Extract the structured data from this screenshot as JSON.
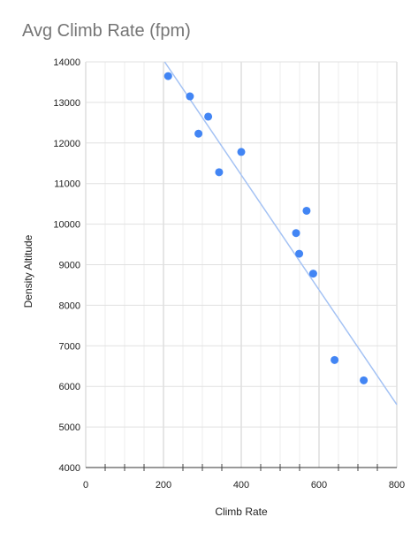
{
  "chart_data": {
    "type": "scatter",
    "title": "Avg Climb Rate (fpm)",
    "xlabel": "Climb Rate",
    "ylabel": "Density Altitude",
    "xlim": [
      0,
      800
    ],
    "ylim": [
      4000,
      14000
    ],
    "x_ticks": [
      0,
      200,
      400,
      600,
      800
    ],
    "y_ticks": [
      4000,
      5000,
      6000,
      7000,
      8000,
      9000,
      10000,
      11000,
      12000,
      13000,
      14000
    ],
    "grid": true,
    "legend": "none",
    "series": [
      {
        "color": "#4285f4",
        "points": [
          {
            "x": 212,
            "y": 13650
          },
          {
            "x": 268,
            "y": 13150
          },
          {
            "x": 315,
            "y": 12650
          },
          {
            "x": 290,
            "y": 12230
          },
          {
            "x": 400,
            "y": 11780
          },
          {
            "x": 343,
            "y": 11280
          },
          {
            "x": 568,
            "y": 10330
          },
          {
            "x": 541,
            "y": 9780
          },
          {
            "x": 549,
            "y": 9270
          },
          {
            "x": 585,
            "y": 8780
          },
          {
            "x": 640,
            "y": 6650
          },
          {
            "x": 715,
            "y": 6150
          }
        ]
      }
    ],
    "trendline": {
      "color": "#a4c2f4",
      "points": [
        {
          "x": 203,
          "y": 14000
        },
        {
          "x": 800,
          "y": 5550
        }
      ]
    }
  }
}
